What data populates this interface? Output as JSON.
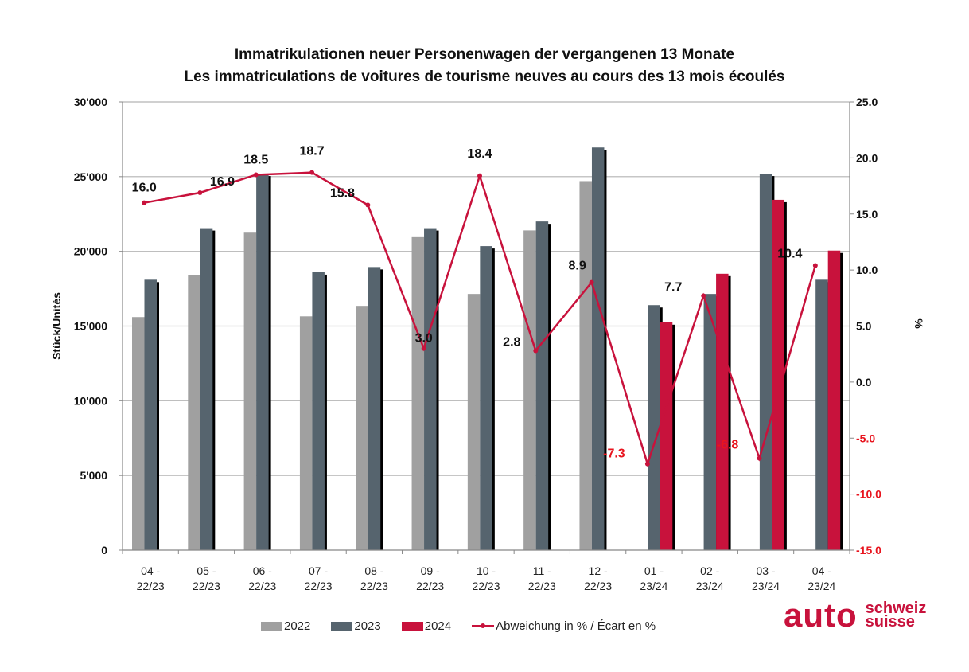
{
  "chart_data": {
    "type": "bar",
    "title": "Immatrikulationen neuer Personenwagen der vergangenen 13 Monate",
    "subtitle": "Les immatriculations de voitures de tourisme neuves au cours des 13 mois écoulés",
    "xlabel": "",
    "ylabel": "Stück/Unités",
    "y2label": "%",
    "ylim": [
      0,
      30000
    ],
    "y2lim": [
      -15,
      25
    ],
    "yticks": [
      "0",
      "5'000",
      "10'000",
      "15'000",
      "20'000",
      "25'000",
      "30'000"
    ],
    "y2ticks": [
      "-15.0",
      "-10.0",
      "-5.0",
      "0.0",
      "5.0",
      "10.0",
      "15.0",
      "20.0",
      "25.0"
    ],
    "grid": true,
    "legend_position": "bottom",
    "categories": [
      [
        "04 -",
        "22/23"
      ],
      [
        "05 -",
        "22/23"
      ],
      [
        "06 -",
        "22/23"
      ],
      [
        "07 -",
        "22/23"
      ],
      [
        "08 -",
        "22/23"
      ],
      [
        "09 -",
        "22/23"
      ],
      [
        "10 -",
        "22/23"
      ],
      [
        "11 -",
        "22/23"
      ],
      [
        "12 -",
        "22/23"
      ],
      [
        "01 -",
        "23/24"
      ],
      [
        "02 -",
        "23/24"
      ],
      [
        "03 -",
        "23/24"
      ],
      [
        "04 -",
        "23/24"
      ]
    ],
    "series": [
      {
        "name": "2022",
        "type": "bar",
        "color": "#a0a0a0",
        "values": [
          15600,
          18400,
          21250,
          15650,
          16350,
          20950,
          17150,
          21400,
          24700,
          null,
          null,
          null,
          null
        ]
      },
      {
        "name": "2023",
        "type": "bar",
        "color": "#56646e",
        "values": [
          18100,
          21550,
          25200,
          18600,
          18950,
          21550,
          20350,
          22000,
          26950,
          16400,
          17150,
          25200,
          18100
        ]
      },
      {
        "name": "2024",
        "type": "bar",
        "color": "#c8123c",
        "values": [
          null,
          null,
          null,
          null,
          null,
          null,
          null,
          null,
          null,
          15250,
          18500,
          23450,
          20050
        ]
      },
      {
        "name": "Abweichung in % / Écart en %",
        "type": "line",
        "axis": "right",
        "color": "#c8123c",
        "values": [
          16.0,
          16.9,
          18.5,
          18.7,
          15.8,
          3.0,
          18.4,
          2.8,
          8.9,
          -7.3,
          7.7,
          -6.8,
          10.4
        ],
        "labels": [
          "16.0",
          "16.9",
          "18.5",
          "18.7",
          "15.8",
          "3.0",
          "18.4",
          "2.8",
          "8.9",
          "-7.3",
          "7.7",
          "-6.8",
          "10.4"
        ]
      }
    ]
  },
  "legend": {
    "items": [
      {
        "label": "2022",
        "color": "#a0a0a0"
      },
      {
        "label": "2023",
        "color": "#56646e"
      },
      {
        "label": "2024",
        "color": "#c8123c"
      },
      {
        "label": "Abweichung in % / Écart en %",
        "color": "#c8123c"
      }
    ]
  },
  "logo": {
    "main": "auto",
    "line1": "schweiz",
    "line2": "suisse"
  },
  "colors": {
    "negative_label": "#e8141e",
    "grid": "#b4b4b4",
    "shadow": "#000000"
  }
}
